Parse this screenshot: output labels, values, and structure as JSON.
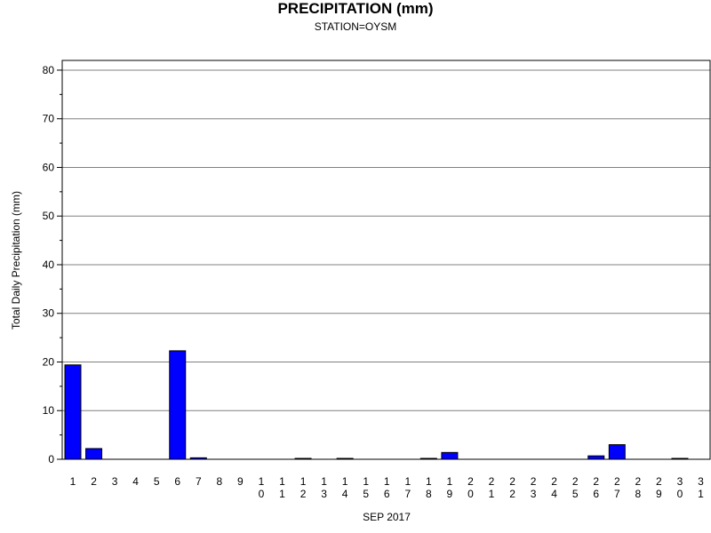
{
  "chart_data": {
    "type": "bar",
    "title": "PRECIPITATION (mm)",
    "subtitle": "STATION=OYSM",
    "xlabel": "SEP 2017",
    "ylabel": "Total Daily Precipitation (mm)",
    "ylim": [
      0,
      82
    ],
    "yticks": [
      0,
      10,
      20,
      30,
      40,
      50,
      60,
      70,
      80
    ],
    "grid": true,
    "bar_color": "#0000ff",
    "categories": [
      "1",
      "2",
      "3",
      "4",
      "5",
      "6",
      "7",
      "8",
      "9",
      "10",
      "11",
      "12",
      "13",
      "14",
      "15",
      "16",
      "17",
      "18",
      "19",
      "20",
      "21",
      "22",
      "23",
      "24",
      "25",
      "26",
      "27",
      "28",
      "29",
      "30",
      "31"
    ],
    "values": [
      19.4,
      2.2,
      0,
      0,
      0,
      22.3,
      0.3,
      0,
      0,
      0,
      0,
      0.1,
      0,
      0.1,
      0,
      0,
      0,
      0.1,
      1.4,
      0,
      0,
      0,
      0,
      0,
      0,
      0.7,
      3.0,
      0,
      0,
      0.1,
      0
    ]
  }
}
